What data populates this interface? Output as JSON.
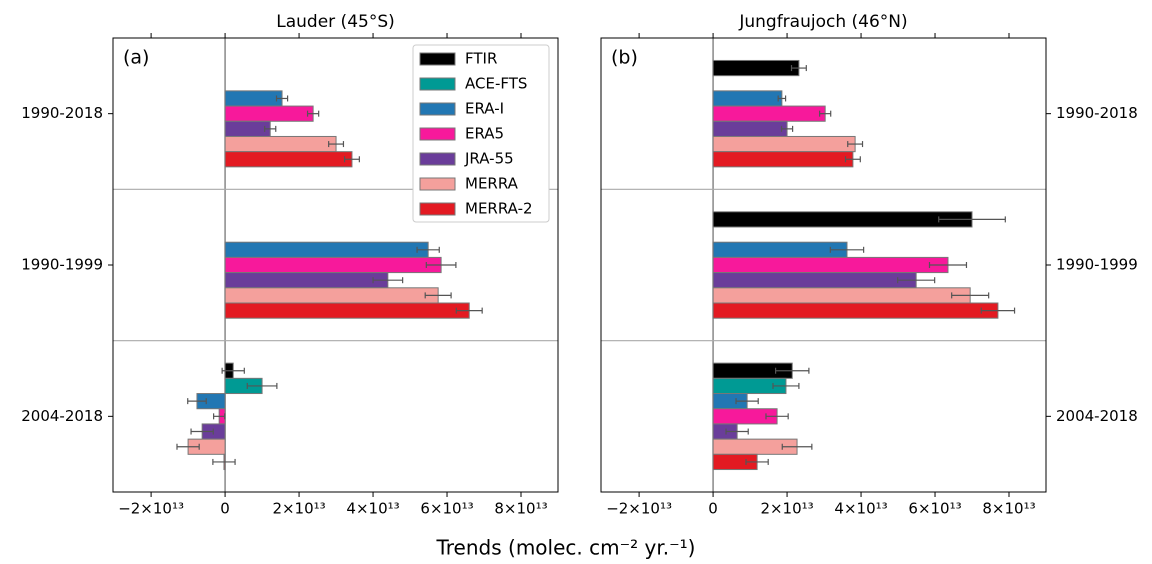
{
  "chart_data": [
    {
      "type": "bar",
      "orientation": "horizontal",
      "title": "Lauder (45°S)",
      "panel_label": "(a)",
      "xlabel": "Trends (molec. cm⁻² yr.⁻¹)",
      "categories": [
        "1990-2018",
        "1990-1999",
        "2004-2018"
      ],
      "category_axis": "left",
      "xlim": [
        -30300000000000.0,
        90000000000000.0
      ],
      "xticks": [
        {
          "value": -20000000000000.0,
          "label": "−2×10¹³"
        },
        0,
        {
          "value": 20000000000000.0,
          "label": "2×10¹³"
        },
        {
          "value": 40000000000000.0,
          "label": "4×10¹³"
        },
        {
          "value": 60000000000000.0,
          "label": "6×10¹³"
        },
        {
          "value": 80000000000000.0,
          "label": "8×10¹³"
        }
      ],
      "legend": "upper right",
      "series": [
        {
          "name": "FTIR",
          "color": "#000000",
          "values": [
            null,
            null,
            2200000000000.0
          ],
          "errors": [
            null,
            null,
            3000000000000.0
          ]
        },
        {
          "name": "ACE-FTS",
          "color": "#009a94",
          "values": [
            null,
            null,
            10000000000000.0
          ],
          "errors": [
            null,
            null,
            4000000000000.0
          ]
        },
        {
          "name": "ERA-I",
          "color": "#2277b3",
          "values": [
            15400000000000.0,
            54900000000000.0,
            -7600000000000.0
          ],
          "errors": [
            1500000000000.0,
            3000000000000.0,
            2500000000000.0
          ]
        },
        {
          "name": "ERA5",
          "color": "#f7199b",
          "values": [
            23800000000000.0,
            58400000000000.0,
            -1600000000000.0
          ],
          "errors": [
            1500000000000.0,
            4000000000000.0,
            1500000000000.0
          ]
        },
        {
          "name": "JRA-55",
          "color": "#6a3d9a",
          "values": [
            12200000000000.0,
            44000000000000.0,
            -6200000000000.0
          ],
          "errors": [
            1500000000000.0,
            4000000000000.0,
            3000000000000.0
          ]
        },
        {
          "name": "MERRA",
          "color": "#f4a09c",
          "values": [
            30000000000000.0,
            57600000000000.0,
            -10000000000000.0
          ],
          "errors": [
            2000000000000.0,
            3500000000000.0,
            3000000000000.0
          ]
        },
        {
          "name": "MERRA-2",
          "color": "#e31a22",
          "values": [
            34300000000000.0,
            66000000000000.0,
            -300000000000.0
          ],
          "errors": [
            2000000000000.0,
            3500000000000.0,
            3000000000000.0
          ]
        }
      ]
    },
    {
      "type": "bar",
      "orientation": "horizontal",
      "title": "Jungfraujoch (46°N)",
      "panel_label": "(b)",
      "categories": [
        "1990-2018",
        "1990-1999",
        "2004-2018"
      ],
      "category_axis": "right",
      "xlim": [
        -30300000000000.0,
        90000000000000.0
      ],
      "xticks": [
        {
          "value": -20000000000000.0,
          "label": "−2×10¹³"
        },
        0,
        {
          "value": 20000000000000.0,
          "label": "2×10¹³"
        },
        {
          "value": 40000000000000.0,
          "label": "4×10¹³"
        },
        {
          "value": 60000000000000.0,
          "label": "6×10¹³"
        },
        {
          "value": 80000000000000.0,
          "label": "8×10¹³"
        }
      ],
      "series": [
        {
          "color": "#000000",
          "values": [
            23200000000000.0,
            70000000000000.0,
            21400000000000.0
          ],
          "errors": [
            2000000000000.0,
            9000000000000.0,
            4500000000000.0
          ]
        },
        {
          "color": "#009a94",
          "values": [
            null,
            null,
            19700000000000.0
          ],
          "errors": [
            null,
            null,
            3500000000000.0
          ]
        },
        {
          "color": "#2277b3",
          "values": [
            18600000000000.0,
            36200000000000.0,
            9200000000000.0
          ],
          "errors": [
            1000000000000.0,
            4500000000000.0,
            3000000000000.0
          ]
        },
        {
          "color": "#f7199b",
          "values": [
            30300000000000.0,
            63500000000000.0,
            17300000000000.0
          ],
          "errors": [
            1500000000000.0,
            5000000000000.0,
            3000000000000.0
          ]
        },
        {
          "color": "#6a3d9a",
          "values": [
            20000000000000.0,
            54900000000000.0,
            6500000000000.0
          ],
          "errors": [
            1500000000000.0,
            5000000000000.0,
            3000000000000.0
          ]
        },
        {
          "color": "#f4a09c",
          "values": [
            38400000000000.0,
            69500000000000.0,
            22700000000000.0
          ],
          "errors": [
            2000000000000.0,
            5000000000000.0,
            4000000000000.0
          ]
        },
        {
          "color": "#e31a22",
          "values": [
            37800000000000.0,
            77000000000000.0,
            11900000000000.0
          ],
          "errors": [
            2000000000000.0,
            4500000000000.0,
            3000000000000.0
          ]
        }
      ]
    }
  ]
}
